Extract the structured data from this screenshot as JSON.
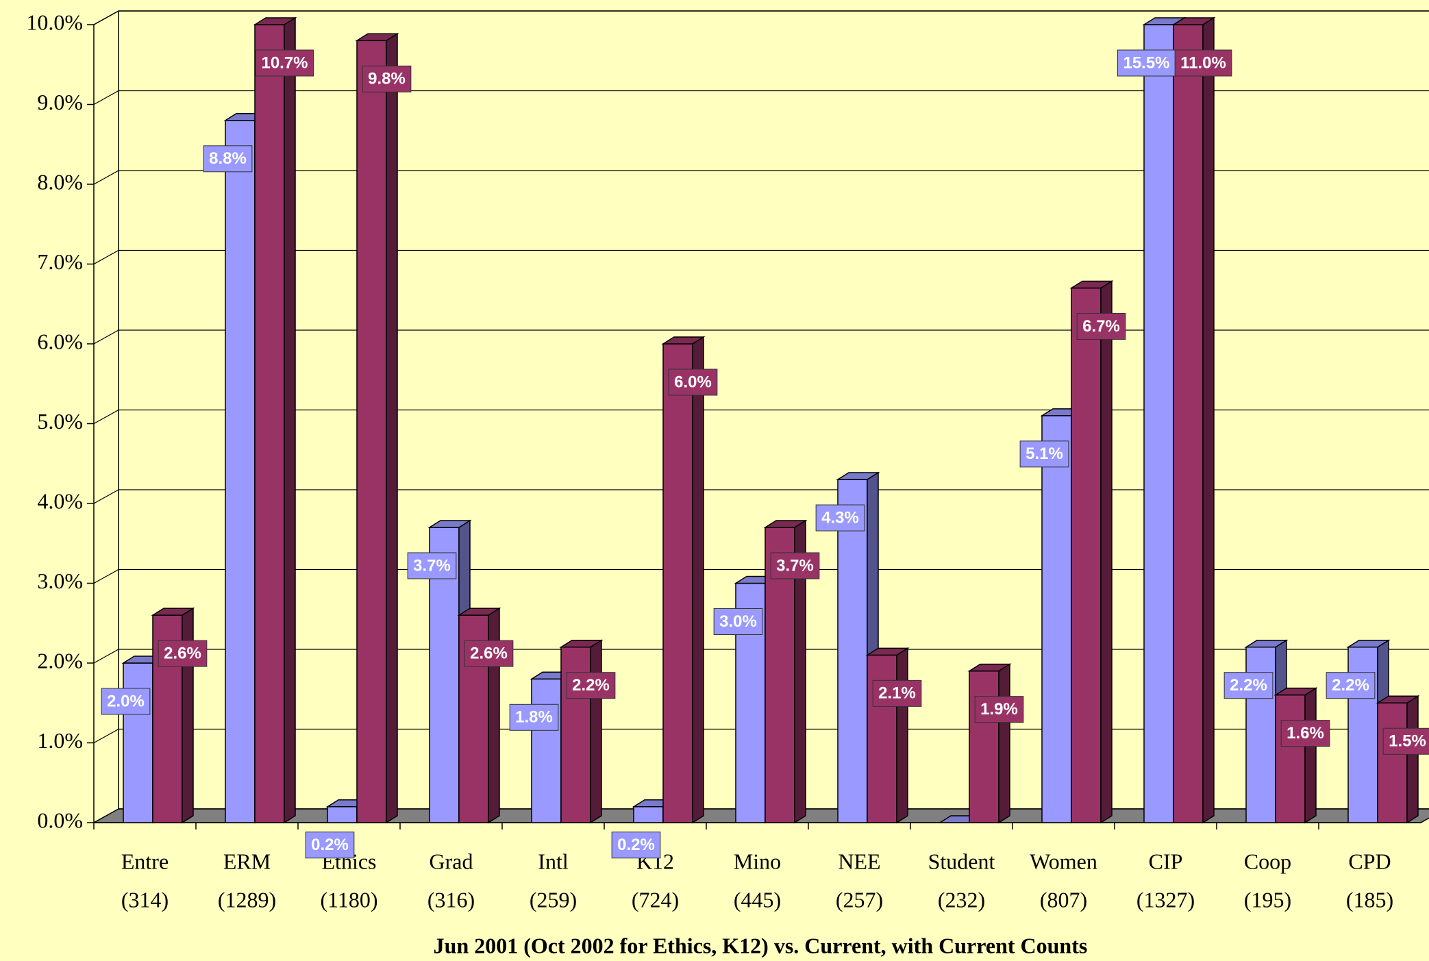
{
  "chart_data": {
    "type": "bar3d",
    "x_label": "Jun 2001 (Oct 2002 for Ethics, K12) vs. Current, with Current Counts",
    "categories": [
      "Entre",
      "ERM",
      "Ethics",
      "Grad",
      "Intl",
      "K12",
      "Mino",
      "NEE",
      "Student",
      "Women",
      "CIP",
      "Coop",
      "CPD"
    ],
    "category_counts": [
      "(314)",
      "(1289)",
      "(1180)",
      "(316)",
      "(259)",
      "(724)",
      "(445)",
      "(257)",
      "(232)",
      "(807)",
      "(1327)",
      "(195)",
      "(185)"
    ],
    "series": [
      {
        "color": "#9999ff",
        "values": [
          2.0,
          8.8,
          0.2,
          3.7,
          1.8,
          0.2,
          3.0,
          4.3,
          0,
          5.1,
          15.5,
          2.2,
          2.2
        ],
        "value_labels": [
          "2.0%",
          "8.8%",
          "0.2%",
          "3.7%",
          "1.8%",
          "0.2%",
          "3.0%",
          "4.3%",
          null,
          "5.1%",
          "15.5%",
          "2.2%",
          "2.2%"
        ]
      },
      {
        "color": "#993366",
        "values": [
          2.6,
          10.7,
          9.8,
          2.6,
          2.2,
          6.0,
          3.7,
          2.1,
          1.9,
          6.7,
          11.0,
          1.6,
          1.5
        ],
        "value_labels": [
          "2.6%",
          "10.7%",
          "9.8%",
          "2.6%",
          "2.2%",
          "6.0%",
          "3.7%",
          "2.1%",
          "1.9%",
          "6.7%",
          "11.0%",
          "1.6%",
          "1.5%"
        ]
      }
    ],
    "ylim": [
      0,
      10
    ],
    "yticks": [
      {
        "value": 0,
        "label": "0.0%"
      },
      {
        "value": 1,
        "label": "1.0%"
      },
      {
        "value": 2,
        "label": "2.0%"
      },
      {
        "value": 3,
        "label": "3.0%"
      },
      {
        "value": 4,
        "label": "4.0%"
      },
      {
        "value": 5,
        "label": "5.0%"
      },
      {
        "value": 6,
        "label": "6.0%"
      },
      {
        "value": 7,
        "label": "7.0%"
      },
      {
        "value": 8,
        "label": "8.0%"
      },
      {
        "value": 9,
        "label": "9.0%"
      },
      {
        "value": 10,
        "label": "10.0%"
      }
    ],
    "grid": true
  }
}
